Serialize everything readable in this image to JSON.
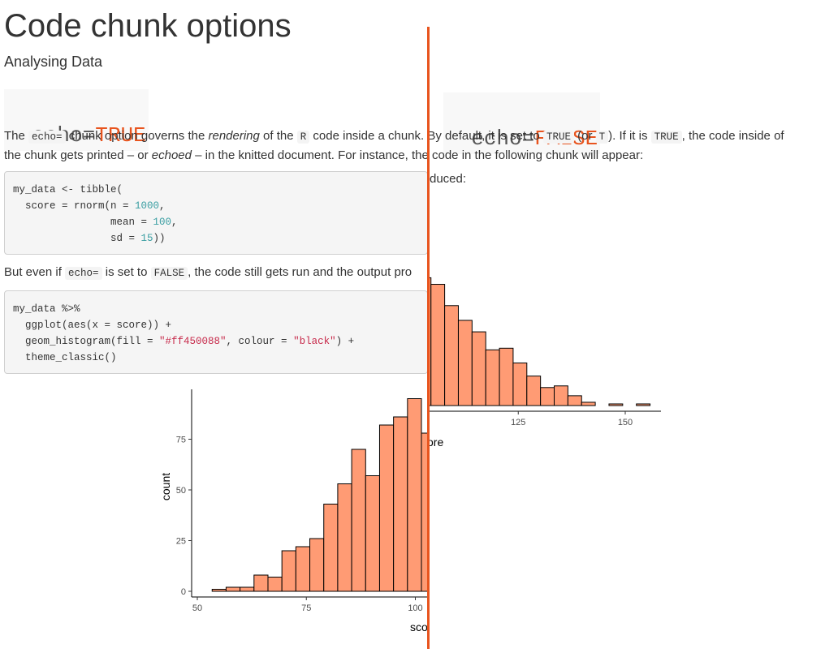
{
  "page": {
    "title": "Code chunk options",
    "subtitle": "Analysing Data"
  },
  "left_heading": {
    "code": "echo=",
    "value": "TRUE"
  },
  "right_heading": {
    "code": "echo=",
    "value": "FALSE"
  },
  "para1": {
    "p1": "The ",
    "c1": "echo=",
    "p2": " chunk option governs the ",
    "em1": "rendering",
    "p3": " of the ",
    "c2": "R",
    "p4": " code inside a chunk. By default, it is set to ",
    "c3": "TRUE",
    "p5": " (or ",
    "c4": "T",
    "p6": "). If it is ",
    "c5": "TRUE",
    "p7": ", the code inside of",
    "line2a": "the chunk gets printed – or ",
    "em2": "echoed",
    "line2b": " – in the knitted document. For instance, the code in the following chunk will appear:"
  },
  "code1": {
    "l1": "my_data <- tibble(",
    "l2a": "  score = rnorm(n = ",
    "l2n": "1000",
    "l2b": ",",
    "l3a": "                mean = ",
    "l3n": "100",
    "l3b": ",",
    "l4a": "                sd = ",
    "l4n": "15",
    "l4b": "))"
  },
  "para2": {
    "p1": "But even if ",
    "c1": "echo=",
    "p2": " is set to ",
    "c2": "FALSE",
    "p3": ", the code still gets run and the output pro",
    "right_fragment": "duced:"
  },
  "code2": {
    "l1": "my_data %>%",
    "l2": "  ggplot(aes(x = score)) +",
    "l3a": "  geom_histogram(fill = ",
    "l3s1": "\"#ff450088\"",
    "l3b": ", colour = ",
    "l3s2": "\"black\"",
    "l3c": ") +",
    "l4": "  theme_classic()"
  },
  "colors": {
    "accent": "#e8541e",
    "bar_fill": "#ff9b74",
    "bar_stroke": "#000000",
    "code_number": "#3a9ea2",
    "code_string": "#c72a4b"
  },
  "chart_data": {
    "type": "bar",
    "variant": "histogram",
    "xlabel": "score",
    "ylabel": "count",
    "xlim": [
      48,
      158
    ],
    "ylim": [
      0,
      96
    ],
    "x_ticks": [
      50,
      75,
      100,
      125,
      150
    ],
    "y_ticks": [
      0,
      25,
      50,
      75
    ],
    "bin_width": 3.2,
    "bins_start": 53.4,
    "values": [
      1,
      2,
      2,
      8,
      7,
      20,
      22,
      26,
      43,
      53,
      70,
      57,
      82,
      86,
      95,
      78,
      74,
      61,
      52,
      45,
      34,
      35,
      26,
      18,
      11,
      12,
      6,
      2,
      0,
      1,
      0,
      1
    ],
    "grid": false,
    "left_panel_label": "count",
    "left_panel_xlabel": "sco",
    "right_panel_xlabel": "ore"
  }
}
